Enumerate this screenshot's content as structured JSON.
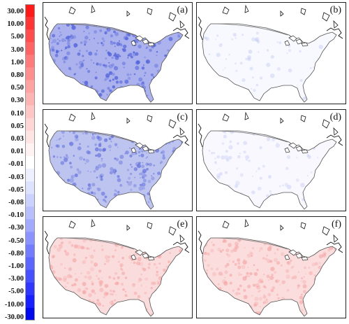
{
  "colorbar": {
    "labels": [
      "30.00",
      "10.00",
      "5.00",
      "3.00",
      "1.00",
      "0.80",
      "0.50",
      "0.30",
      "0.10",
      "0.05",
      "0.03",
      "0.01",
      "-0.01",
      "-0.03",
      "-0.05",
      "-0.08",
      "-0.10",
      "-0.30",
      "-0.50",
      "-0.80",
      "-1.00",
      "-3.00",
      "-5.00",
      "-10.00",
      "-30.00"
    ],
    "colors": [
      "#ff1a1a",
      "#ff3434",
      "#ff4c4c",
      "#ff6464",
      "#ff7a7a",
      "#ff8e8e",
      "#ffa2a2",
      "#ffb4b4",
      "#ffc6c6",
      "#ffd6d6",
      "#ffe4e4",
      "#fff2f2",
      "#ffffff",
      "#eef0ff",
      "#dde2ff",
      "#ccd2ff",
      "#b8bfff",
      "#a2aaff",
      "#8a93ff",
      "#737cff",
      "#5c66ff",
      "#4650ff",
      "#3038ff",
      "#1820ff",
      "#0008ee"
    ]
  },
  "panels": [
    {
      "letter": "(a)",
      "fill": "#4a5bd8",
      "intensity": 0.85
    },
    {
      "letter": "(b)",
      "fill": "#aab4ee",
      "intensity": 0.12
    },
    {
      "letter": "(c)",
      "fill": "#5766d9",
      "intensity": 0.7
    },
    {
      "letter": "(d)",
      "fill": "#b4bcf0",
      "intensity": 0.18
    },
    {
      "letter": "(e)",
      "fill": "#f4a3a3",
      "intensity": 0.7
    },
    {
      "letter": "(f)",
      "fill": "#f3a0a0",
      "intensity": 0.65
    }
  ]
}
